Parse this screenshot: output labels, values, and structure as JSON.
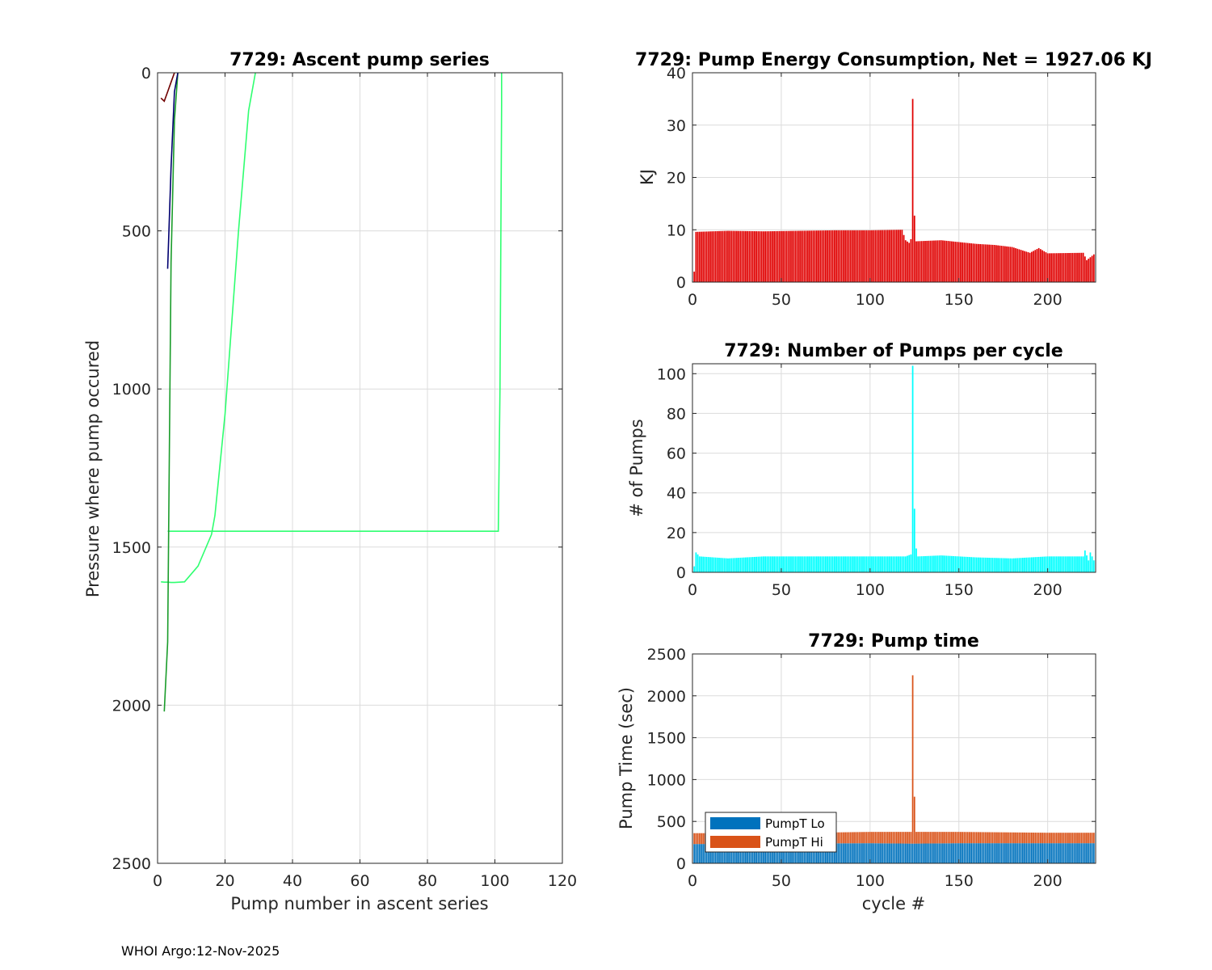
{
  "footer": "WHOI Argo:12-Nov-2025",
  "chart_data": [
    {
      "id": "ascent",
      "type": "line",
      "title": "7729: Ascent pump series",
      "xlabel": "Pump number in ascent series",
      "ylabel": "Pressure where pump occured",
      "xlim": [
        0,
        120
      ],
      "ylim": [
        2500,
        0
      ],
      "y_reversed": true,
      "xticks": [
        0,
        20,
        40,
        60,
        80,
        100,
        120
      ],
      "yticks": [
        0,
        500,
        1000,
        1500,
        2000,
        2500
      ],
      "grid": true,
      "colormap": "jet (colored by cycle number)",
      "series": [
        {
          "color": "#2fff70",
          "x": [
            1,
            2,
            3,
            4,
            5,
            8,
            12,
            16,
            17,
            20,
            24,
            27,
            29
          ],
          "y": [
            1610,
            1611,
            1611,
            1612,
            1612,
            1610,
            1560,
            1460,
            1400,
            1080,
            500,
            120,
            0
          ]
        },
        {
          "color": "#2fff70",
          "x": [
            3,
            101,
            101,
            101.5,
            102,
            102
          ],
          "y": [
            1450,
            1450,
            1450,
            1000,
            100,
            0
          ]
        },
        {
          "color": "#1a9c2a",
          "x": [
            2,
            3,
            3.5,
            4,
            5,
            6
          ],
          "y": [
            2020,
            1800,
            1200,
            600,
            150,
            0
          ]
        },
        {
          "color": "#000070",
          "x": [
            3,
            4,
            5,
            6
          ],
          "y": [
            620,
            300,
            60,
            0
          ]
        },
        {
          "color": "#700000",
          "x": [
            1,
            2,
            3,
            4,
            5
          ],
          "y": [
            80,
            90,
            60,
            30,
            0
          ]
        }
      ]
    },
    {
      "id": "energy",
      "type": "bar",
      "title": "7729: Pump Energy Consumption,  Net = 1927.06 KJ",
      "xlabel": "",
      "ylabel": "KJ",
      "xlim": [
        0,
        227
      ],
      "ylim": [
        0,
        40
      ],
      "xticks": [
        0,
        50,
        100,
        150,
        200
      ],
      "yticks": [
        0,
        10,
        20,
        30,
        40
      ],
      "grid": true,
      "color": "#e00000",
      "profile": [
        [
          1,
          2
        ],
        [
          2,
          9.6
        ],
        [
          20,
          9.8
        ],
        [
          40,
          9.7
        ],
        [
          60,
          9.8
        ],
        [
          80,
          9.9
        ],
        [
          100,
          9.9
        ],
        [
          118,
          10
        ],
        [
          120,
          8
        ],
        [
          122,
          7.5
        ],
        [
          123,
          8.2
        ],
        [
          124,
          35
        ],
        [
          125,
          12.7
        ],
        [
          126,
          7.8
        ],
        [
          140,
          8
        ],
        [
          160,
          7.3
        ],
        [
          170,
          7.1
        ],
        [
          180,
          6.7
        ],
        [
          190,
          5.6
        ],
        [
          195,
          6.5
        ],
        [
          200,
          5.5
        ],
        [
          220,
          5.6
        ],
        [
          222,
          4.2
        ],
        [
          226,
          5.3
        ]
      ]
    },
    {
      "id": "pumps",
      "type": "bar",
      "title": "7729: Number of Pumps per cycle",
      "xlabel": "",
      "ylabel": "# of Pumps",
      "xlim": [
        0,
        227
      ],
      "ylim": [
        0,
        105
      ],
      "xticks": [
        0,
        50,
        100,
        150,
        200
      ],
      "yticks": [
        0,
        20,
        40,
        60,
        80,
        100
      ],
      "grid": true,
      "color": "#00ffff",
      "profile": [
        [
          1,
          3
        ],
        [
          2,
          10
        ],
        [
          4,
          8
        ],
        [
          20,
          7
        ],
        [
          40,
          8
        ],
        [
          60,
          8
        ],
        [
          80,
          8
        ],
        [
          100,
          8
        ],
        [
          120,
          8
        ],
        [
          123,
          9
        ],
        [
          124,
          104
        ],
        [
          125,
          32
        ],
        [
          126,
          12
        ],
        [
          127,
          8
        ],
        [
          140,
          8.5
        ],
        [
          160,
          7.5
        ],
        [
          180,
          7
        ],
        [
          200,
          8
        ],
        [
          220,
          8
        ],
        [
          221,
          11
        ],
        [
          223,
          6
        ],
        [
          224,
          10
        ],
        [
          226,
          6
        ]
      ]
    },
    {
      "id": "pumptime",
      "type": "bar",
      "stacked": true,
      "title": "7729: Pump time",
      "xlabel": "cycle #",
      "ylabel": "Pump Time (sec)",
      "xlim": [
        0,
        227
      ],
      "ylim": [
        0,
        2500
      ],
      "xticks": [
        0,
        50,
        100,
        150,
        200
      ],
      "yticks": [
        0,
        500,
        1000,
        1500,
        2000,
        2500
      ],
      "grid": true,
      "legend": "bottom-left",
      "series": [
        {
          "name": "PumpT Lo",
          "color": "#0072bd",
          "profile": [
            [
              1,
              230
            ],
            [
              50,
              235
            ],
            [
              100,
              240
            ],
            [
              124,
              235
            ],
            [
              150,
              240
            ],
            [
              200,
              240
            ],
            [
              226,
              240
            ]
          ]
        },
        {
          "name": "PumpT Hi",
          "color": "#d95319",
          "profile": [
            [
              1,
              130
            ],
            [
              50,
              125
            ],
            [
              100,
              135
            ],
            [
              123,
              140
            ],
            [
              124,
              2010
            ],
            [
              125,
              560
            ],
            [
              126,
              140
            ],
            [
              150,
              135
            ],
            [
              200,
              125
            ],
            [
              226,
              125
            ]
          ]
        }
      ]
    }
  ]
}
